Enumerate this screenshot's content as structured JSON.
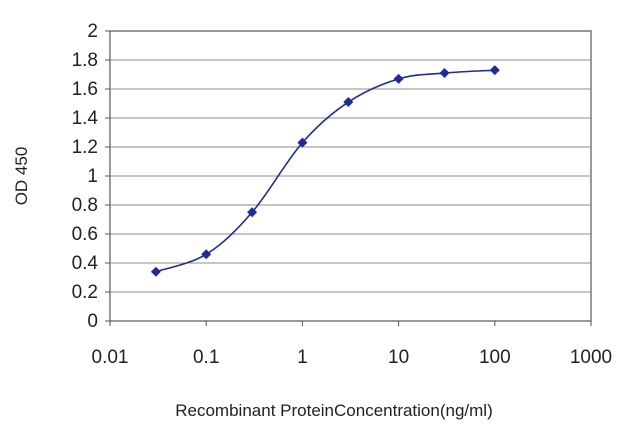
{
  "chart_data": {
    "type": "line",
    "title": "",
    "xlabel": "Recombinant ProteinConcentration(ng/ml)",
    "ylabel": "OD 450",
    "x_scale": "log",
    "xlim": [
      0.01,
      1000
    ],
    "ylim": [
      0,
      2
    ],
    "x_ticks": [
      0.01,
      0.1,
      1,
      10,
      100,
      1000
    ],
    "x_tick_labels": [
      "0.01",
      "0.1",
      "1",
      "10",
      "100",
      "1000"
    ],
    "y_ticks": [
      0,
      0.2,
      0.4,
      0.6,
      0.8,
      1,
      1.2,
      1.4,
      1.6,
      1.8,
      2
    ],
    "y_tick_labels": [
      "0",
      "0.2",
      "0.4",
      "0.6",
      "0.8",
      "1",
      "1.2",
      "1.4",
      "1.6",
      "1.8",
      "2"
    ],
    "grid": "horizontal",
    "legend": "none",
    "series": [
      {
        "x": [
          0.03,
          0.1,
          0.3,
          1,
          3,
          10,
          30,
          100
        ],
        "y": [
          0.34,
          0.46,
          0.75,
          1.23,
          1.51,
          1.67,
          1.71,
          1.73
        ]
      }
    ],
    "colors": {
      "line": "#1f2a9c",
      "marker": "#1f2a9c",
      "grid": "#8c8c8c",
      "frame": "#555555"
    }
  }
}
